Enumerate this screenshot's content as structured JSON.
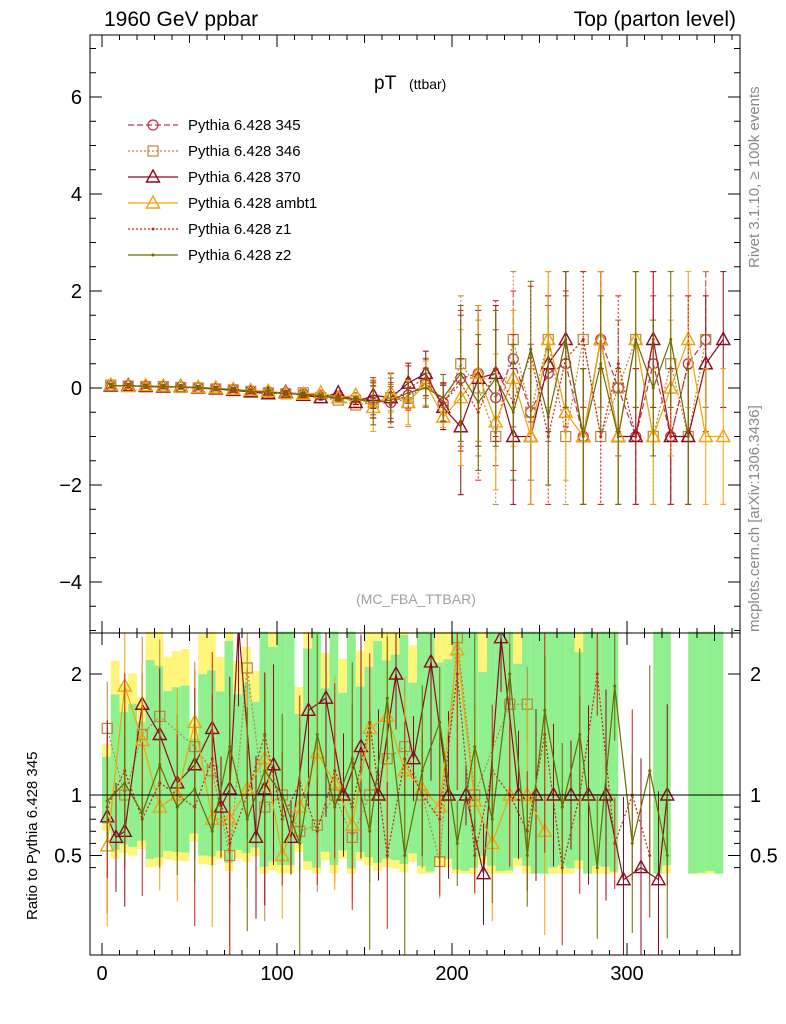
{
  "header": {
    "left": "1960 GeV ppbar",
    "right": "Top (parton level)"
  },
  "side_labels": {
    "rivet": "Rivet 3.1.10, ≥ 100k events",
    "mcplots": "mcplots.cern.ch [arXiv:1306.3436]"
  },
  "chart_data": [
    {
      "type": "line",
      "title": "pT",
      "title_sub": "(ttbar)",
      "watermark": "(MC_FBA_TTBAR)",
      "xlabel": "",
      "ylabel": "",
      "xlim": [
        -8,
        362
      ],
      "ylim": [
        -5,
        7.2
      ],
      "yticks": [
        -4,
        -2,
        0,
        2,
        4,
        6
      ],
      "yticklabels": [
        "−4",
        "−2",
        "0",
        "2",
        "4",
        "6"
      ],
      "legend_position": "top-left",
      "colors": {
        "345": "#c03050",
        "346": "#b8863c",
        "370": "#8b0a1e",
        "ambt1": "#f0a30a",
        "z1": "#d02010",
        "z2": "#6b6b00"
      },
      "series": [
        {
          "name": "Pythia 6.428 345",
          "key": "345",
          "line": "dashed",
          "marker": "circle",
          "x": [
            5,
            15,
            25,
            35,
            45,
            55,
            65,
            75,
            85,
            95,
            105,
            115,
            125,
            135,
            145,
            155,
            165,
            175,
            185,
            195,
            205,
            215,
            225,
            235,
            245,
            255,
            265,
            275,
            285,
            295,
            305,
            315,
            325,
            335,
            345
          ],
          "y": [
            0.05,
            0.05,
            0.04,
            0.03,
            0.02,
            0.01,
            -0.01,
            -0.03,
            -0.06,
            -0.08,
            -0.1,
            -0.12,
            -0.15,
            -0.18,
            -0.2,
            -0.25,
            -0.3,
            -0.15,
            0.1,
            -0.3,
            0.2,
            0.3,
            -0.2,
            0.6,
            -0.5,
            0.3,
            0.5,
            -1,
            1,
            0,
            -1,
            0.5,
            -1,
            0.5,
            1
          ]
        },
        {
          "name": "Pythia 6.428 346",
          "key": "346",
          "line": "dotted",
          "marker": "square",
          "x": [
            5,
            15,
            25,
            35,
            45,
            55,
            65,
            75,
            85,
            95,
            105,
            115,
            125,
            135,
            145,
            155,
            165,
            175,
            185,
            195,
            205,
            215,
            225,
            235,
            245,
            255,
            265,
            275,
            285,
            295,
            305,
            315,
            325,
            335,
            345
          ],
          "y": [
            0.06,
            0.04,
            0.03,
            0.03,
            0.01,
            0,
            -0.02,
            -0.04,
            -0.07,
            -0.1,
            -0.12,
            -0.1,
            -0.2,
            -0.25,
            -0.35,
            -0.3,
            -0.2,
            -0.3,
            0.2,
            -0.4,
            0.5,
            0,
            -1,
            1,
            -0.5,
            1,
            -1,
            1,
            -1,
            0,
            1,
            -1,
            0.5,
            -1,
            1
          ]
        },
        {
          "name": "Pythia 6.428 370",
          "key": "370",
          "line": "solid",
          "marker": "triangle",
          "x": [
            5,
            15,
            25,
            35,
            45,
            55,
            65,
            75,
            85,
            95,
            105,
            115,
            125,
            135,
            145,
            155,
            165,
            175,
            185,
            195,
            205,
            215,
            225,
            235,
            245,
            255,
            265,
            275,
            285,
            295,
            305,
            315,
            325,
            335,
            345,
            355
          ],
          "y": [
            0.04,
            0.05,
            0.03,
            0.02,
            0.03,
            0,
            -0.02,
            -0.05,
            -0.08,
            -0.12,
            -0.09,
            -0.15,
            -0.2,
            -0.1,
            -0.3,
            -0.15,
            -0.2,
            0.1,
            0.3,
            -0.4,
            -0.8,
            0.2,
            0.3,
            -1,
            -1,
            0.5,
            1,
            -1,
            1,
            -1,
            -1,
            1,
            -1,
            -1,
            0.5,
            1
          ]
        },
        {
          "name": "Pythia 6.428 ambt1",
          "key": "ambt1",
          "line": "solid",
          "marker": "triangle",
          "x": [
            5,
            15,
            25,
            35,
            45,
            55,
            65,
            75,
            85,
            95,
            105,
            115,
            125,
            135,
            145,
            155,
            165,
            175,
            185,
            195,
            205,
            215,
            225,
            235,
            245,
            255,
            265,
            275,
            285,
            295,
            305,
            315,
            325,
            335,
            345,
            355
          ],
          "y": [
            0.06,
            0.03,
            0.05,
            0.04,
            0.02,
            0.01,
            0,
            -0.03,
            -0.05,
            -0.07,
            -0.11,
            -0.13,
            -0.1,
            -0.2,
            -0.15,
            -0.4,
            -0.1,
            -0.3,
            0.1,
            -0.6,
            -0.2,
            0.3,
            -0.7,
            0.2,
            -1,
            1,
            -0.5,
            -1,
            1,
            -1,
            1,
            -1,
            0,
            1,
            -1,
            -1
          ]
        },
        {
          "name": "Pythia 6.428 z1",
          "key": "z1",
          "line": "dotted",
          "marker": "dot",
          "x": [
            5,
            15,
            25,
            35,
            45,
            55,
            65,
            75,
            85,
            95,
            105,
            115,
            125,
            135,
            145,
            155,
            165,
            175,
            185,
            195,
            205,
            215,
            225,
            235,
            245,
            255,
            265,
            275,
            285,
            295,
            305,
            315,
            325,
            335
          ],
          "y": [
            0.05,
            0.04,
            0.04,
            0.02,
            0.02,
            0,
            -0.01,
            -0.04,
            -0.06,
            -0.09,
            -0.1,
            -0.14,
            -0.17,
            -0.2,
            -0.25,
            -0.2,
            -0.35,
            0,
            0.2,
            -0.3,
            0.1,
            -0.5,
            0.4,
            -0.3,
            0.7,
            -1,
            0.6,
            1,
            -1,
            0.5,
            -1,
            1,
            -1,
            0.5
          ]
        },
        {
          "name": "Pythia 6.428 z2",
          "key": "z2",
          "line": "solid",
          "marker": "dot",
          "x": [
            5,
            15,
            25,
            35,
            45,
            55,
            65,
            75,
            85,
            95,
            105,
            115,
            125,
            135,
            145,
            155,
            165,
            175,
            185,
            195,
            205,
            215,
            225,
            235,
            245,
            255,
            265,
            275,
            285,
            295,
            305,
            315,
            325,
            335
          ],
          "y": [
            0.05,
            0.05,
            0.03,
            0.03,
            0.02,
            0.01,
            -0.02,
            -0.03,
            -0.07,
            -0.08,
            -0.12,
            -0.13,
            -0.16,
            -0.22,
            -0.22,
            -0.3,
            -0.25,
            -0.1,
            0,
            -0.2,
            0.3,
            -0.3,
            0.2,
            -0.5,
            0.8,
            -0.6,
            1,
            -1,
            0.5,
            -1,
            1,
            0,
            1,
            -1
          ]
        }
      ]
    },
    {
      "type": "line",
      "title": "",
      "xlabel": "",
      "ylabel": "Ratio to Pythia 6.428 345",
      "xlim": [
        -8,
        362
      ],
      "ylim": [
        0.35,
        2.35
      ],
      "yticks": [
        0.5,
        1,
        2
      ],
      "yticklabels": [
        "0.5",
        "1",
        "2"
      ],
      "xticks": [
        0,
        100,
        200,
        300
      ],
      "xticklabels": [
        "0",
        "100",
        "200",
        "300"
      ],
      "reference_line": 1,
      "band_colors": {
        "inner": "#90f090",
        "outer": "#fff57a"
      },
      "series": [
        {
          "name": "Pythia 6.428 346",
          "key": "346",
          "x": [
            3,
            13,
            23,
            33,
            53,
            63,
            73,
            83,
            93,
            103,
            113,
            123,
            133,
            143,
            153,
            163,
            173,
            183,
            193,
            203,
            213,
            233,
            243
          ],
          "y": [
            1.55,
            1.0,
            1.5,
            1.65,
            1.4,
            1.2,
            0.5,
            2.05,
            0.9,
            1.0,
            0.7,
            0.75,
            1.0,
            0.65,
            1.0,
            1.3,
            1.4,
            1.0,
            0.45,
            2.3,
            1.0,
            1.75,
            1.75
          ]
        },
        {
          "name": "Pythia 6.428 370",
          "key": "370",
          "x": [
            3,
            8,
            13,
            23,
            33,
            43,
            53,
            63,
            68,
            73,
            78,
            88,
            93,
            98,
            108,
            118,
            128,
            138,
            148,
            158,
            168,
            178,
            188,
            198,
            208,
            218,
            228,
            238,
            248,
            258,
            268,
            278,
            288,
            298,
            308,
            318,
            323
          ],
          "y": [
            0.82,
            0.65,
            0.7,
            1.75,
            1.5,
            1.1,
            1.25,
            1.55,
            0.9,
            1.05,
            2.4,
            0.65,
            1.05,
            1.25,
            0.65,
            1.7,
            1.8,
            1.0,
            1.4,
            1.0,
            2.0,
            1.3,
            2.1,
            1.0,
            1.0,
            0.35,
            2.3,
            1.0,
            1.0,
            1.0,
            1.0,
            1.0,
            1.0,
            0.3,
            0.4,
            0.3,
            1.0
          ]
        },
        {
          "name": "Pythia 6.428 ambt1",
          "key": "ambt1",
          "x": [
            3,
            13,
            23,
            33,
            43,
            53,
            63,
            73,
            83,
            93,
            103,
            113,
            123,
            133,
            143,
            153,
            163,
            173,
            183,
            193,
            203,
            213,
            223,
            233,
            243,
            253
          ],
          "y": [
            0.58,
            1.9,
            1.45,
            0.9,
            1.0,
            1.6,
            0.8,
            0.8,
            1.05,
            1.3,
            0.5,
            0.9,
            1.35,
            1.1,
            0.75,
            1.55,
            1.65,
            1.2,
            1.05,
            0.9,
            2.2,
            0.95,
            0.6,
            1.0,
            1.0,
            0.7
          ]
        },
        {
          "name": "Pythia 6.428 z1",
          "key": "z1",
          "x": [
            3,
            13,
            23,
            33,
            43,
            53,
            63,
            73,
            83,
            93,
            103,
            113,
            123,
            133,
            143,
            153,
            163,
            173,
            183,
            193,
            203,
            213,
            223,
            233,
            243,
            253,
            263,
            273,
            283,
            293,
            303,
            313
          ],
          "y": [
            0.9,
            1.2,
            0.8,
            1.1,
            1.0,
            0.9,
            1.3,
            0.6,
            1.0,
            1.5,
            0.8,
            1.1,
            0.7,
            1.2,
            0.9,
            1.6,
            0.5,
            1.3,
            1.0,
            0.8,
            2.0,
            0.5,
            1.2,
            1.0,
            0.7,
            1.5,
            0.4,
            1.0,
            2.0,
            0.6,
            1.0,
            0.5
          ]
        },
        {
          "name": "Pythia 6.428 z2",
          "key": "z2",
          "x": [
            3,
            13,
            23,
            33,
            43,
            53,
            63,
            73,
            83,
            93,
            103,
            113,
            123,
            133,
            143,
            153,
            163,
            173,
            183,
            193,
            203,
            213,
            223,
            233,
            243,
            253,
            263,
            273,
            283,
            293,
            303,
            313,
            323
          ],
          "y": [
            0.95,
            1.1,
            0.85,
            1.25,
            0.9,
            1.05,
            0.7,
            1.4,
            0.8,
            1.2,
            1.0,
            0.6,
            1.5,
            0.9,
            1.3,
            0.7,
            1.8,
            0.5,
            1.2,
            1.6,
            0.6,
            1.4,
            0.8,
            2.0,
            0.5,
            1.7,
            0.9,
            1.5,
            0.4,
            1.9,
            0.6,
            1.2,
            0.5
          ]
        }
      ]
    }
  ]
}
